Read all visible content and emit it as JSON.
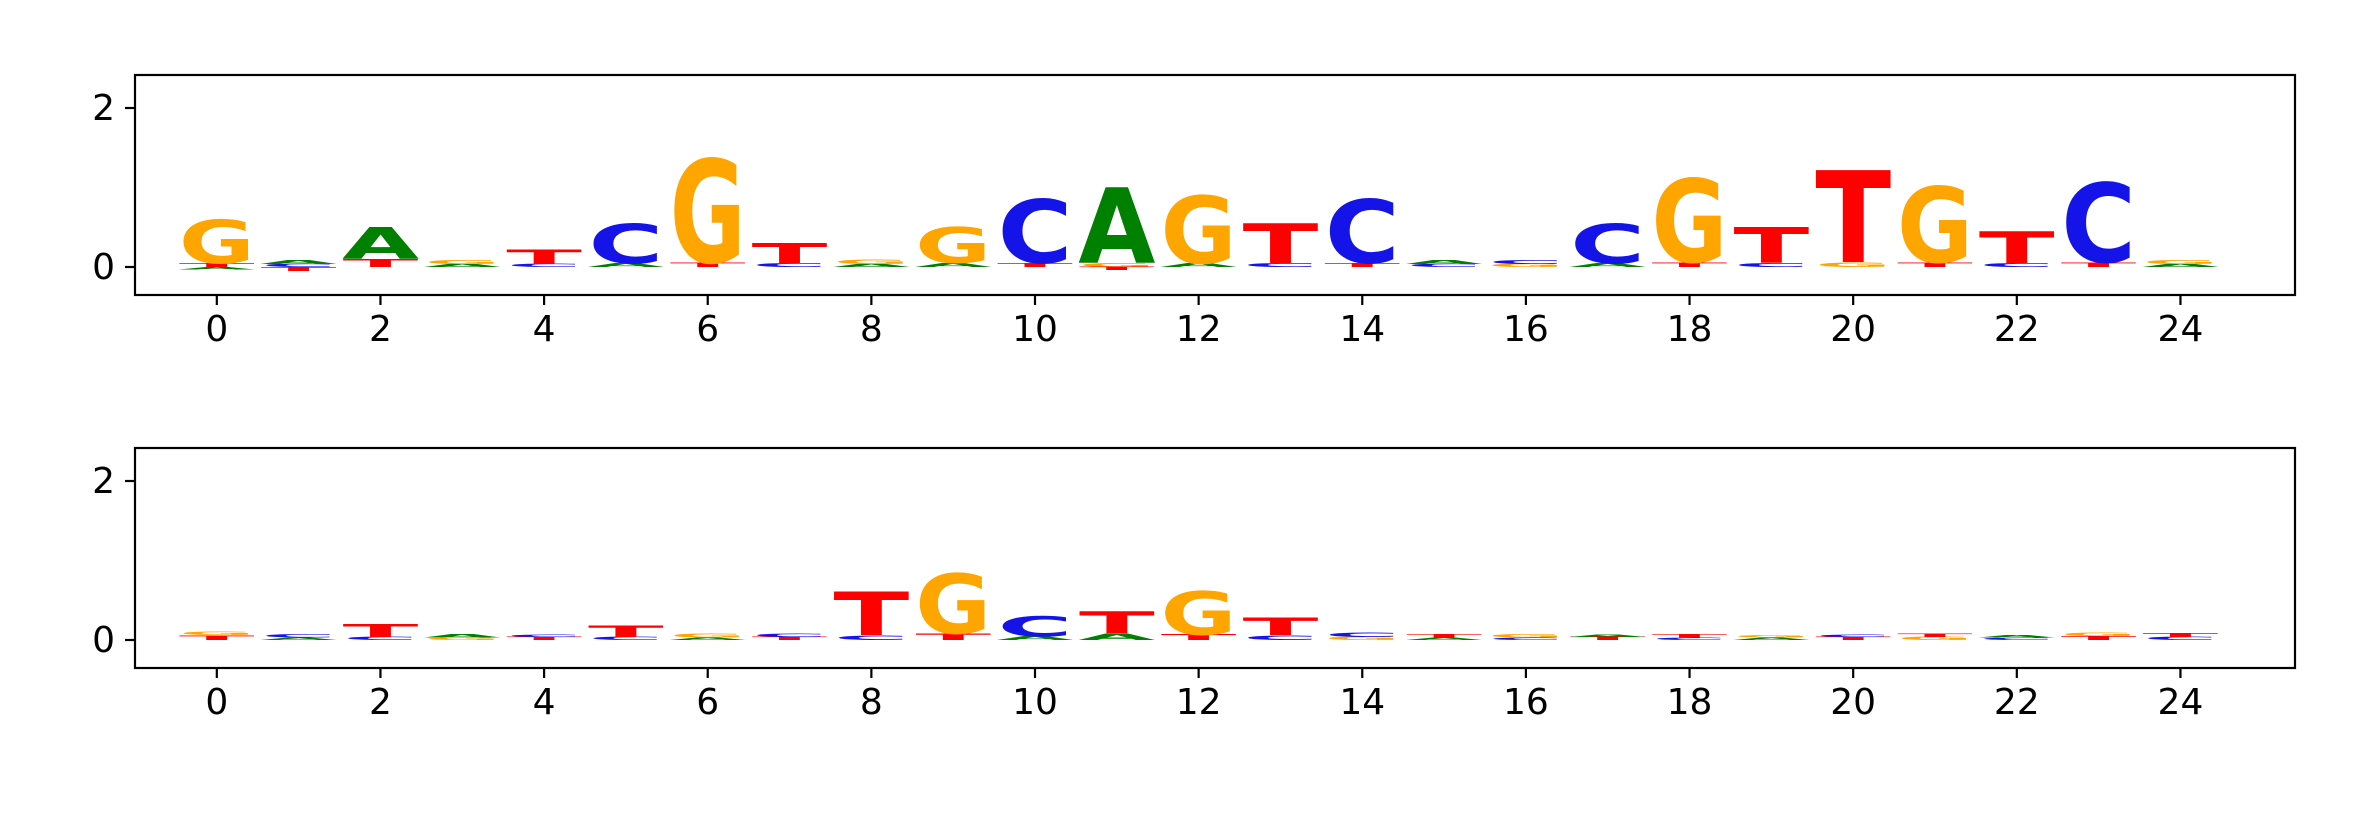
{
  "figure": {
    "background": "#ffffff",
    "frame_color": "#000000",
    "tick_color": "#000000"
  },
  "logo_colors": {
    "A": "#008000",
    "C": "#1414e8",
    "G": "#ffa500",
    "T": "#ff0000"
  },
  "chart_data": [
    {
      "type": "sequence_logo",
      "title": "",
      "xlabel": "",
      "ylabel": "",
      "legend": "none",
      "grid": false,
      "xticks": [
        0,
        2,
        4,
        6,
        8,
        10,
        12,
        14,
        16,
        18,
        20,
        22,
        24
      ],
      "yticks": [
        0,
        2
      ],
      "xlim": [
        -1.0,
        25.4
      ],
      "ylim": [
        -0.35,
        2.42
      ],
      "positions": [
        {
          "pos": 0,
          "stack": [
            [
              "T",
              0.05
            ],
            [
              "G",
              0.55
            ]
          ],
          "neg": [
            [
              "A",
              -0.03
            ]
          ]
        },
        {
          "pos": 1,
          "stack": [
            [
              "C",
              0.04
            ],
            [
              "A",
              0.05
            ]
          ],
          "neg": [
            [
              "T",
              -0.05
            ]
          ]
        },
        {
          "pos": 2,
          "stack": [
            [
              "T",
              0.1
            ],
            [
              "A",
              0.4
            ]
          ],
          "neg": []
        },
        {
          "pos": 3,
          "stack": [
            [
              "A",
              0.04
            ],
            [
              "G",
              0.05
            ]
          ],
          "neg": []
        },
        {
          "pos": 4,
          "stack": [
            [
              "C",
              0.04
            ],
            [
              "T",
              0.18
            ]
          ],
          "neg": []
        },
        {
          "pos": 5,
          "stack": [
            [
              "A",
              0.05
            ],
            [
              "C",
              0.5
            ]
          ],
          "neg": []
        },
        {
          "pos": 6,
          "stack": [
            [
              "T",
              0.06
            ],
            [
              "G",
              1.3
            ]
          ],
          "neg": []
        },
        {
          "pos": 7,
          "stack": [
            [
              "C",
              0.05
            ],
            [
              "T",
              0.25
            ]
          ],
          "neg": []
        },
        {
          "pos": 8,
          "stack": [
            [
              "A",
              0.04
            ],
            [
              "G",
              0.06
            ]
          ],
          "neg": []
        },
        {
          "pos": 9,
          "stack": [
            [
              "A",
              0.05
            ],
            [
              "G",
              0.45
            ]
          ],
          "neg": []
        },
        {
          "pos": 10,
          "stack": [
            [
              "T",
              0.05
            ],
            [
              "C",
              0.8
            ]
          ],
          "neg": []
        },
        {
          "pos": 11,
          "stack": [
            [
              "G",
              0.05
            ],
            [
              "A",
              0.95
            ]
          ],
          "neg": [
            [
              "T",
              -0.04
            ]
          ]
        },
        {
          "pos": 12,
          "stack": [
            [
              "A",
              0.05
            ],
            [
              "G",
              0.85
            ]
          ],
          "neg": []
        },
        {
          "pos": 13,
          "stack": [
            [
              "C",
              0.05
            ],
            [
              "T",
              0.5
            ]
          ],
          "neg": []
        },
        {
          "pos": 14,
          "stack": [
            [
              "T",
              0.05
            ],
            [
              "C",
              0.8
            ]
          ],
          "neg": []
        },
        {
          "pos": 15,
          "stack": [
            [
              "C",
              0.04
            ],
            [
              "A",
              0.05
            ]
          ],
          "neg": []
        },
        {
          "pos": 16,
          "stack": [
            [
              "G",
              0.04
            ],
            [
              "C",
              0.05
            ]
          ],
          "neg": []
        },
        {
          "pos": 17,
          "stack": [
            [
              "A",
              0.05
            ],
            [
              "C",
              0.5
            ]
          ],
          "neg": []
        },
        {
          "pos": 18,
          "stack": [
            [
              "T",
              0.06
            ],
            [
              "G",
              1.05
            ]
          ],
          "neg": []
        },
        {
          "pos": 19,
          "stack": [
            [
              "C",
              0.05
            ],
            [
              "T",
              0.45
            ]
          ],
          "neg": []
        },
        {
          "pos": 20,
          "stack": [
            [
              "G",
              0.06
            ],
            [
              "T",
              1.15
            ]
          ],
          "neg": []
        },
        {
          "pos": 21,
          "stack": [
            [
              "T",
              0.06
            ],
            [
              "G",
              0.95
            ]
          ],
          "neg": []
        },
        {
          "pos": 22,
          "stack": [
            [
              "C",
              0.05
            ],
            [
              "T",
              0.4
            ]
          ],
          "neg": []
        },
        {
          "pos": 23,
          "stack": [
            [
              "T",
              0.06
            ],
            [
              "C",
              1.0
            ]
          ],
          "neg": []
        },
        {
          "pos": 24,
          "stack": [
            [
              "A",
              0.04
            ],
            [
              "G",
              0.05
            ]
          ],
          "neg": []
        }
      ]
    },
    {
      "type": "sequence_logo",
      "title": "",
      "xlabel": "",
      "ylabel": "",
      "legend": "none",
      "grid": false,
      "xticks": [
        0,
        2,
        4,
        6,
        8,
        10,
        12,
        14,
        16,
        18,
        20,
        22,
        24
      ],
      "yticks": [
        0,
        2
      ],
      "xlim": [
        -1.0,
        25.4
      ],
      "ylim": [
        -0.35,
        2.42
      ],
      "positions": [
        {
          "pos": 0,
          "stack": [
            [
              "T",
              0.06
            ],
            [
              "G",
              0.04
            ]
          ],
          "neg": []
        },
        {
          "pos": 1,
          "stack": [
            [
              "A",
              0.03
            ],
            [
              "C",
              0.04
            ]
          ],
          "neg": []
        },
        {
          "pos": 2,
          "stack": [
            [
              "C",
              0.04
            ],
            [
              "T",
              0.16
            ]
          ],
          "neg": []
        },
        {
          "pos": 3,
          "stack": [
            [
              "G",
              0.03
            ],
            [
              "A",
              0.04
            ]
          ],
          "neg": []
        },
        {
          "pos": 4,
          "stack": [
            [
              "T",
              0.04
            ],
            [
              "C",
              0.03
            ]
          ],
          "neg": []
        },
        {
          "pos": 5,
          "stack": [
            [
              "C",
              0.04
            ],
            [
              "T",
              0.15
            ]
          ],
          "neg": []
        },
        {
          "pos": 6,
          "stack": [
            [
              "A",
              0.03
            ],
            [
              "G",
              0.05
            ]
          ],
          "neg": []
        },
        {
          "pos": 7,
          "stack": [
            [
              "T",
              0.04
            ],
            [
              "C",
              0.04
            ]
          ],
          "neg": []
        },
        {
          "pos": 8,
          "stack": [
            [
              "C",
              0.06
            ],
            [
              "T",
              0.55
            ]
          ],
          "neg": []
        },
        {
          "pos": 9,
          "stack": [
            [
              "T",
              0.08
            ],
            [
              "G",
              0.75
            ]
          ],
          "neg": []
        },
        {
          "pos": 10,
          "stack": [
            [
              "A",
              0.05
            ],
            [
              "C",
              0.25
            ]
          ],
          "neg": []
        },
        {
          "pos": 11,
          "stack": [
            [
              "A",
              0.08
            ],
            [
              "T",
              0.28
            ]
          ],
          "neg": []
        },
        {
          "pos": 12,
          "stack": [
            [
              "T",
              0.07
            ],
            [
              "G",
              0.55
            ]
          ],
          "neg": []
        },
        {
          "pos": 13,
          "stack": [
            [
              "C",
              0.06
            ],
            [
              "T",
              0.22
            ]
          ],
          "neg": []
        },
        {
          "pos": 14,
          "stack": [
            [
              "G",
              0.04
            ],
            [
              "C",
              0.06
            ]
          ],
          "neg": []
        },
        {
          "pos": 15,
          "stack": [
            [
              "A",
              0.03
            ],
            [
              "T",
              0.04
            ]
          ],
          "neg": []
        },
        {
          "pos": 16,
          "stack": [
            [
              "C",
              0.03
            ],
            [
              "G",
              0.04
            ]
          ],
          "neg": []
        },
        {
          "pos": 17,
          "stack": [
            [
              "T",
              0.04
            ],
            [
              "A",
              0.03
            ]
          ],
          "neg": []
        },
        {
          "pos": 18,
          "stack": [
            [
              "C",
              0.03
            ],
            [
              "T",
              0.04
            ]
          ],
          "neg": []
        },
        {
          "pos": 19,
          "stack": [
            [
              "A",
              0.03
            ],
            [
              "G",
              0.03
            ]
          ],
          "neg": []
        },
        {
          "pos": 20,
          "stack": [
            [
              "T",
              0.04
            ],
            [
              "C",
              0.03
            ]
          ],
          "neg": []
        },
        {
          "pos": 21,
          "stack": [
            [
              "G",
              0.04
            ],
            [
              "T",
              0.04
            ]
          ],
          "neg": []
        },
        {
          "pos": 22,
          "stack": [
            [
              "C",
              0.03
            ],
            [
              "A",
              0.03
            ]
          ],
          "neg": []
        },
        {
          "pos": 23,
          "stack": [
            [
              "T",
              0.05
            ],
            [
              "G",
              0.04
            ]
          ],
          "neg": []
        },
        {
          "pos": 24,
          "stack": [
            [
              "C",
              0.04
            ],
            [
              "T",
              0.05
            ]
          ],
          "neg": []
        }
      ]
    }
  ]
}
